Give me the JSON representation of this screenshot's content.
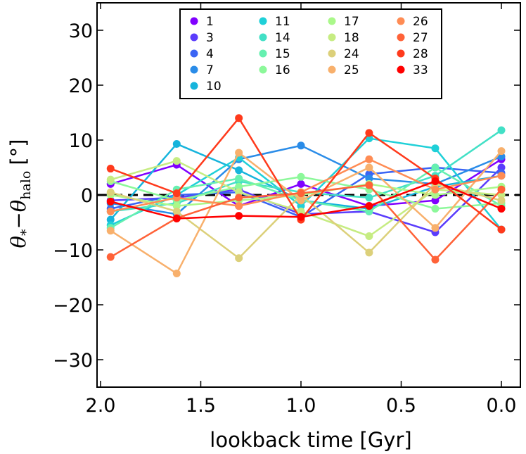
{
  "chart_data": {
    "type": "line",
    "xlabel": "lookback time [Gyr]",
    "ylabel_parts": [
      "θ",
      "*",
      "−θ",
      "halo",
      "[°]"
    ],
    "xlim": [
      2.0,
      0.0
    ],
    "ylim": [
      -35,
      35
    ],
    "x_ticks": [
      2.0,
      1.5,
      1.0,
      0.5,
      0.0
    ],
    "x_tick_labels": [
      "2.0",
      "1.5",
      "1.0",
      "0.5",
      "0.0"
    ],
    "y_ticks": [
      -30,
      -20,
      -10,
      0,
      10,
      20,
      30
    ],
    "y_tick_labels": [
      "−30",
      "−20",
      "−10",
      "0",
      "10",
      "20",
      "30"
    ],
    "reference_line": {
      "y": 0,
      "style": "dashed",
      "color": "#000000"
    },
    "x": [
      1.95,
      1.62,
      1.31,
      1.0,
      0.66,
      0.33,
      0.0
    ],
    "series": [
      {
        "name": "1",
        "color": "#8000ff",
        "values": [
          2.0,
          5.5,
          -2.0,
          2.0,
          -2.0,
          -1.0,
          6.5
        ]
      },
      {
        "name": "3",
        "color": "#5a3cfc",
        "values": [
          -1.0,
          -0.5,
          1.0,
          -3.5,
          -3.0,
          -6.8,
          5.0
        ]
      },
      {
        "name": "4",
        "color": "#3a64f4",
        "values": [
          -2.5,
          0.0,
          0.5,
          -4.0,
          3.8,
          5.0,
          4.0
        ]
      },
      {
        "name": "7",
        "color": "#2a8ce8",
        "values": [
          -1.5,
          -3.5,
          6.5,
          9.0,
          3.0,
          2.0,
          7.0
        ]
      },
      {
        "name": "10",
        "color": "#16b4dc",
        "values": [
          -4.5,
          9.3,
          4.5,
          -1.0,
          -2.5,
          1.5,
          3.5
        ]
      },
      {
        "name": "11",
        "color": "#1fd0d8",
        "values": [
          -5.5,
          0.0,
          6.8,
          -2.0,
          10.3,
          8.5,
          -6.3
        ]
      },
      {
        "name": "14",
        "color": "#42e0c6",
        "values": [
          -3.0,
          -1.5,
          2.5,
          0.5,
          -0.5,
          3.5,
          11.8
        ]
      },
      {
        "name": "15",
        "color": "#66f0b0",
        "values": [
          -6.0,
          1.0,
          3.0,
          -1.0,
          -3.0,
          5.0,
          -2.0
        ]
      },
      {
        "name": "16",
        "color": "#8cf89a",
        "values": [
          2.5,
          -1.0,
          1.5,
          3.3,
          1.0,
          -2.5,
          -1.5
        ]
      },
      {
        "name": "17",
        "color": "#aaf88a",
        "values": [
          0.0,
          -2.0,
          -1.0,
          0.0,
          2.0,
          0.0,
          1.5
        ]
      },
      {
        "name": "18",
        "color": "#c6ec82",
        "values": [
          2.8,
          6.2,
          0.5,
          -3.0,
          -7.5,
          1.0,
          0.0
        ]
      },
      {
        "name": "24",
        "color": "#dcd07a",
        "values": [
          0.5,
          -3.0,
          -11.5,
          0.0,
          -10.5,
          2.0,
          -1.0
        ]
      },
      {
        "name": "25",
        "color": "#f8b06c",
        "values": [
          -6.5,
          -14.3,
          7.7,
          -1.0,
          5.0,
          -6.0,
          8.0
        ]
      },
      {
        "name": "26",
        "color": "#ff8c54",
        "values": [
          -3.0,
          -0.5,
          -2.0,
          0.5,
          6.5,
          1.0,
          3.5
        ]
      },
      {
        "name": "27",
        "color": "#ff6238",
        "values": [
          -11.3,
          -4.2,
          -0.5,
          0.3,
          1.8,
          -11.8,
          1.0
        ]
      },
      {
        "name": "28",
        "color": "#ff3a1c",
        "values": [
          4.8,
          0.3,
          14.0,
          -4.5,
          11.3,
          3.0,
          -6.3
        ]
      },
      {
        "name": "33",
        "color": "#ff0000",
        "values": [
          -1.2,
          -4.3,
          -3.8,
          -4.0,
          -2.0,
          2.5,
          -2.5
        ]
      }
    ],
    "legend_columns": [
      [
        "1",
        "3",
        "4",
        "7",
        "10"
      ],
      [
        "11",
        "14",
        "15",
        "16"
      ],
      [
        "17",
        "18",
        "24",
        "25"
      ],
      [
        "26",
        "27",
        "28",
        "33"
      ]
    ],
    "legend_position": "top-center"
  }
}
